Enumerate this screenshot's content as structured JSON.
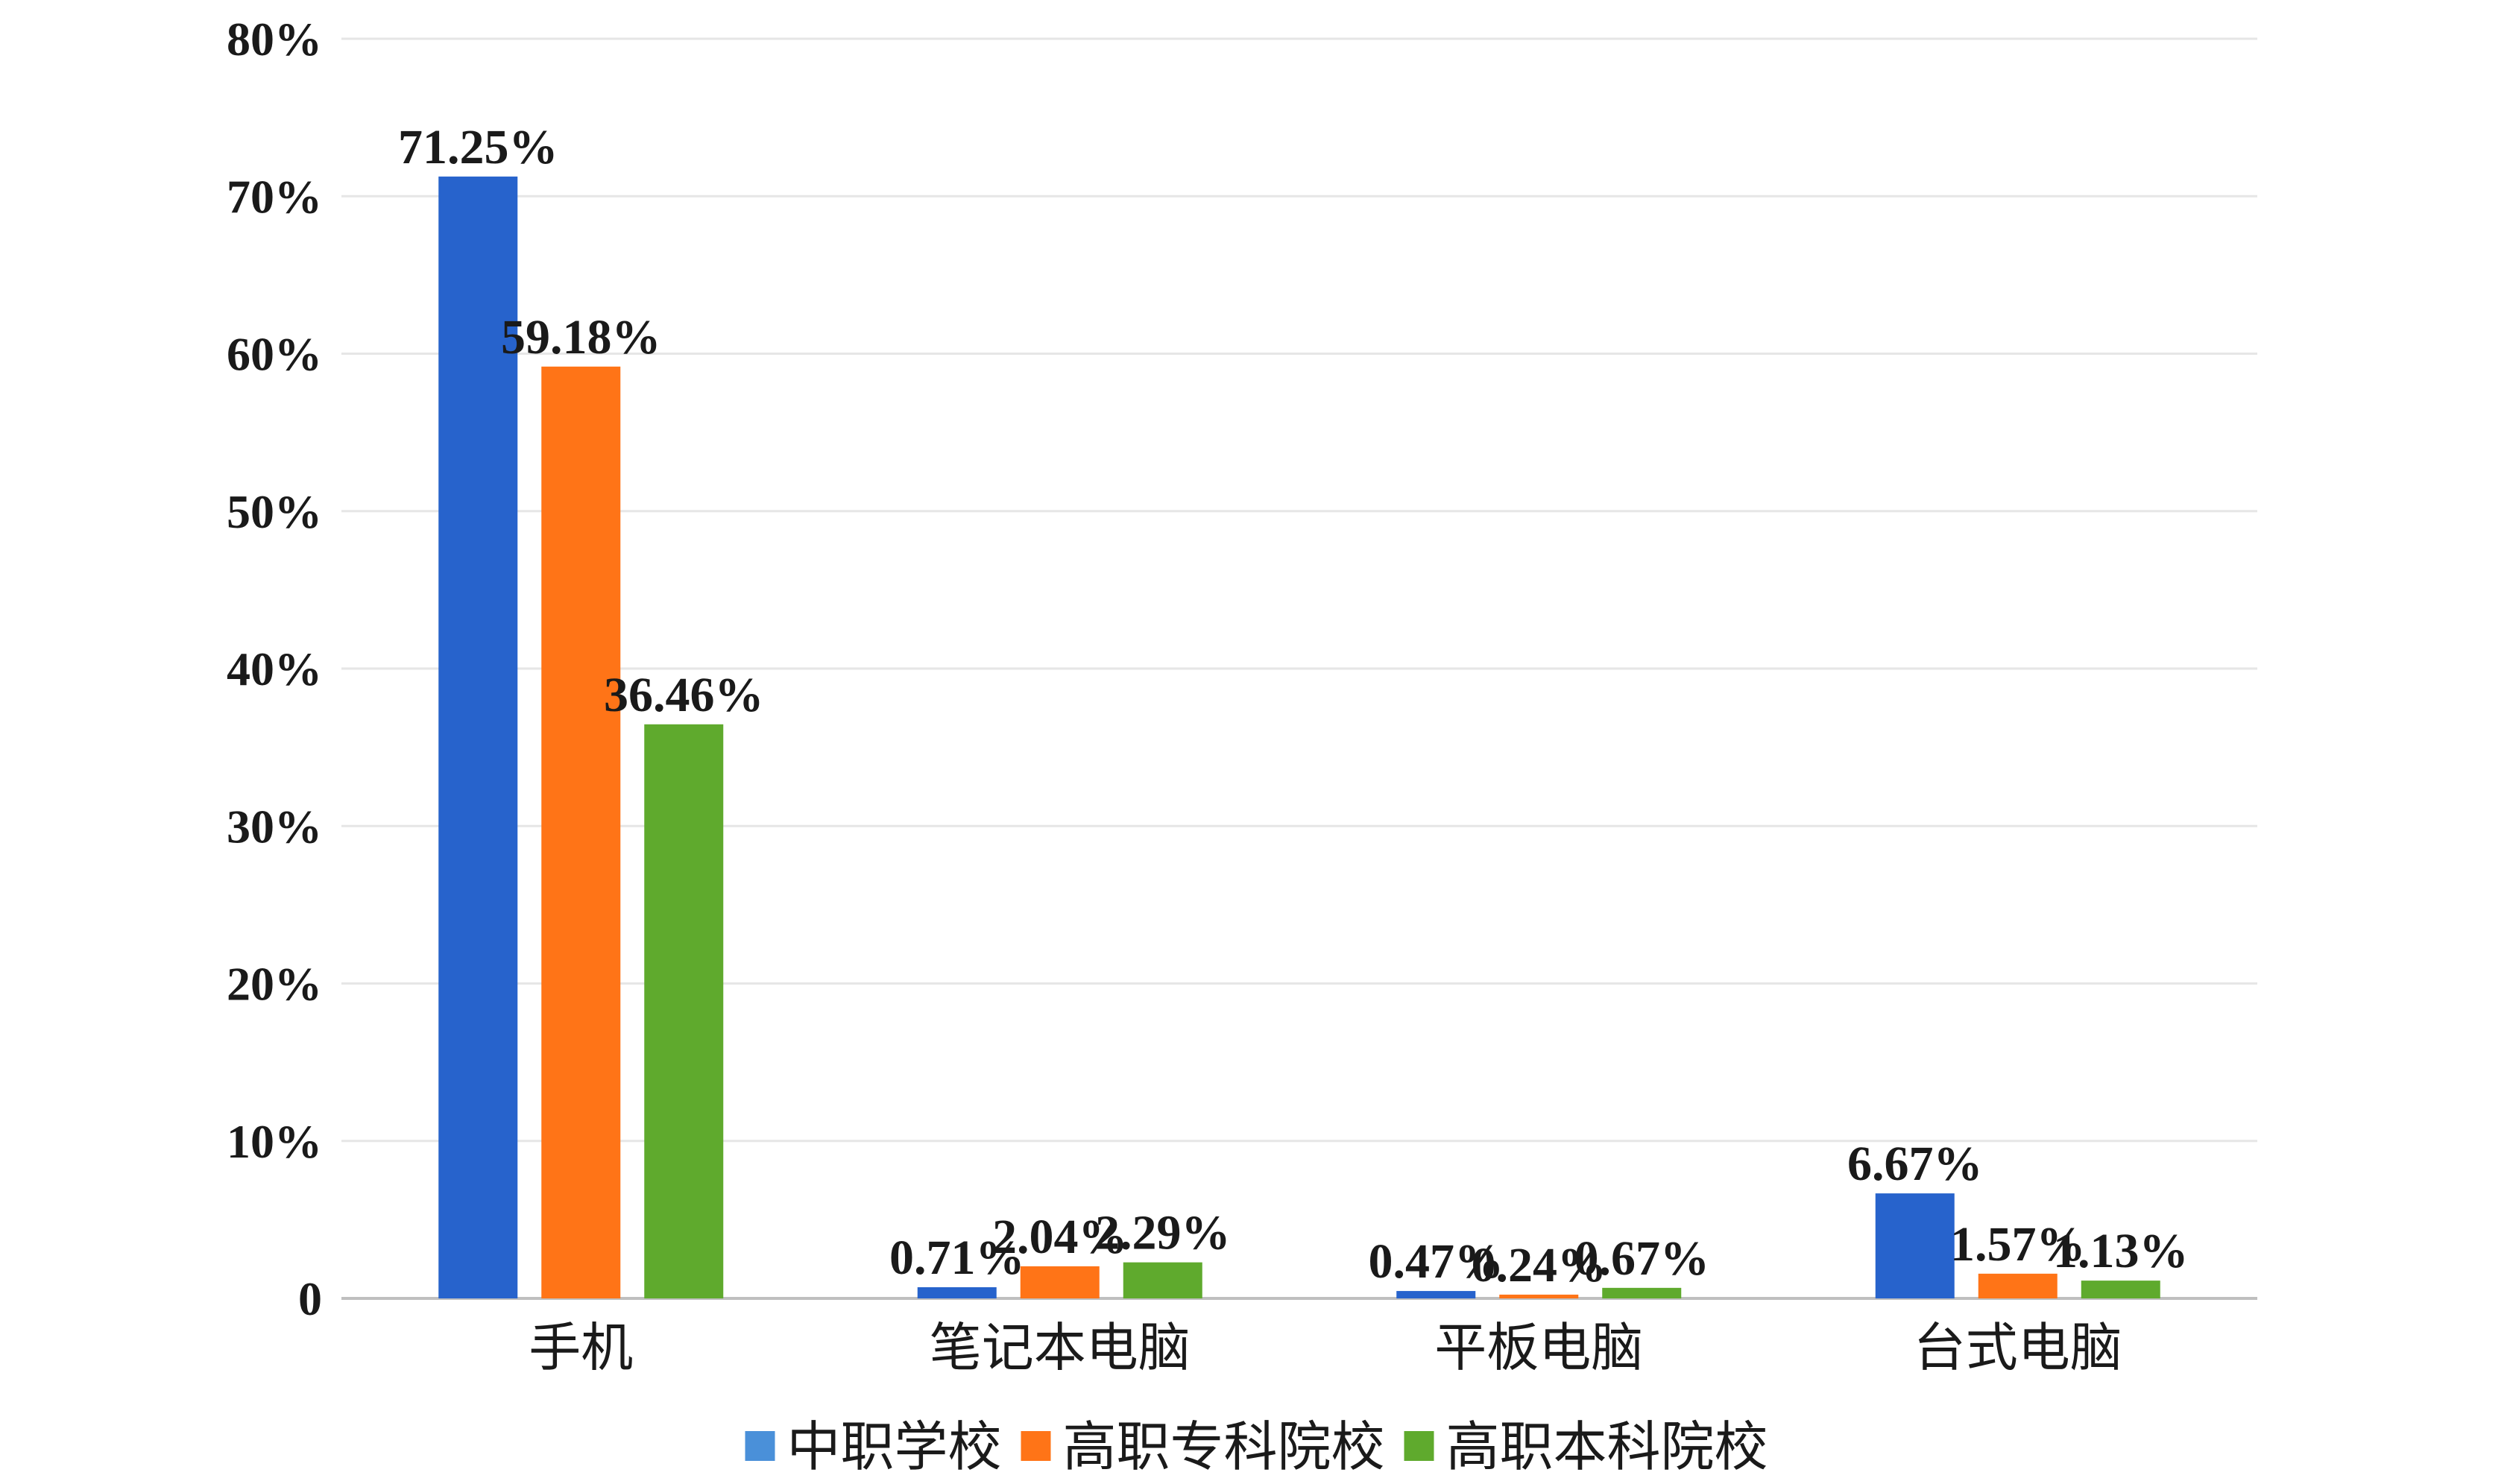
{
  "chart_data": {
    "type": "bar",
    "title": "",
    "xlabel": "",
    "ylabel": "",
    "ylim": [
      0,
      80
    ],
    "y_ticks": [
      {
        "value": 0,
        "label": "0"
      },
      {
        "value": 10,
        "label": "10%"
      },
      {
        "value": 20,
        "label": "20%"
      },
      {
        "value": 30,
        "label": "30%"
      },
      {
        "value": 40,
        "label": "40%"
      },
      {
        "value": 50,
        "label": "50%"
      },
      {
        "value": 60,
        "label": "60%"
      },
      {
        "value": 70,
        "label": "70%"
      },
      {
        "value": 80,
        "label": "80%"
      }
    ],
    "grid": true,
    "legend_position": "bottom",
    "categories": [
      "手机",
      "笔记本电脑",
      "平板电脑",
      "台式电脑"
    ],
    "series": [
      {
        "name": "中职学校",
        "color": "#2763CC",
        "legend_color": "#4A90D9",
        "values": [
          71.25,
          0.71,
          0.47,
          6.67
        ],
        "labels": [
          "71.25%",
          "0.71%",
          "0.47%",
          "6.67%"
        ]
      },
      {
        "name": "高职专科院校",
        "color": "#FF7417",
        "legend_color": "#FF7417",
        "values": [
          59.18,
          2.04,
          0.24,
          1.57
        ],
        "labels": [
          "59.18%",
          "2.04%",
          "0.24%",
          "1.57%"
        ]
      },
      {
        "name": "高职本科院校",
        "color": "#5FAA2D",
        "legend_color": "#5FAA2D",
        "values": [
          36.46,
          2.29,
          0.67,
          1.13
        ],
        "labels": [
          "36.46%",
          "2.29%",
          "0.67%",
          "1.13%"
        ]
      }
    ]
  }
}
